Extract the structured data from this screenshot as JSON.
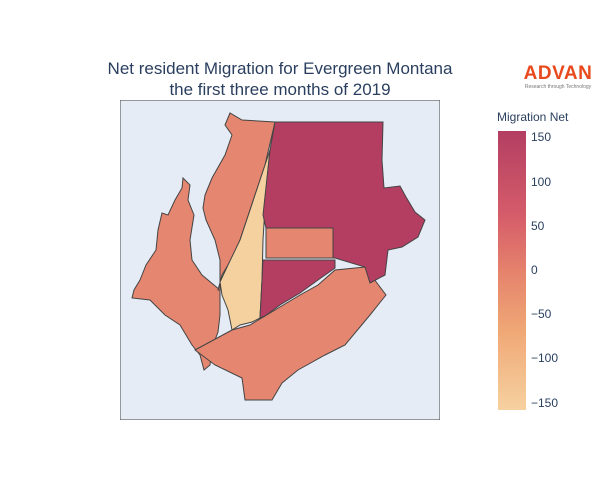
{
  "title": {
    "line1": "Net resident Migration for Evergreen Montana",
    "line2": "the first three months of 2019"
  },
  "logo": {
    "name": "ADVAN",
    "tagline": "Research through Technology"
  },
  "colorbar": {
    "title": "Migration Net",
    "range": [
      -160,
      160
    ],
    "ticks": [
      "150",
      "100",
      "50",
      "0",
      "−50",
      "−100",
      "−150"
    ],
    "colors": [
      "#b33e62",
      "#d55c6a",
      "#e5826c",
      "#f0a876",
      "#f6d1a0"
    ]
  },
  "map": {
    "background": "#e5ecf6",
    "regions": [
      {
        "name": "northwest-strip",
        "fill": "#e48670"
      },
      {
        "name": "northeast",
        "fill": "#b33e62"
      },
      {
        "name": "central-rectangle",
        "fill": "#e48670"
      },
      {
        "name": "central-southeast",
        "fill": "#b33e62"
      },
      {
        "name": "center-sliver",
        "fill": "#f6d1a0"
      },
      {
        "name": "west",
        "fill": "#e48670"
      },
      {
        "name": "south",
        "fill": "#e48670"
      }
    ]
  }
}
